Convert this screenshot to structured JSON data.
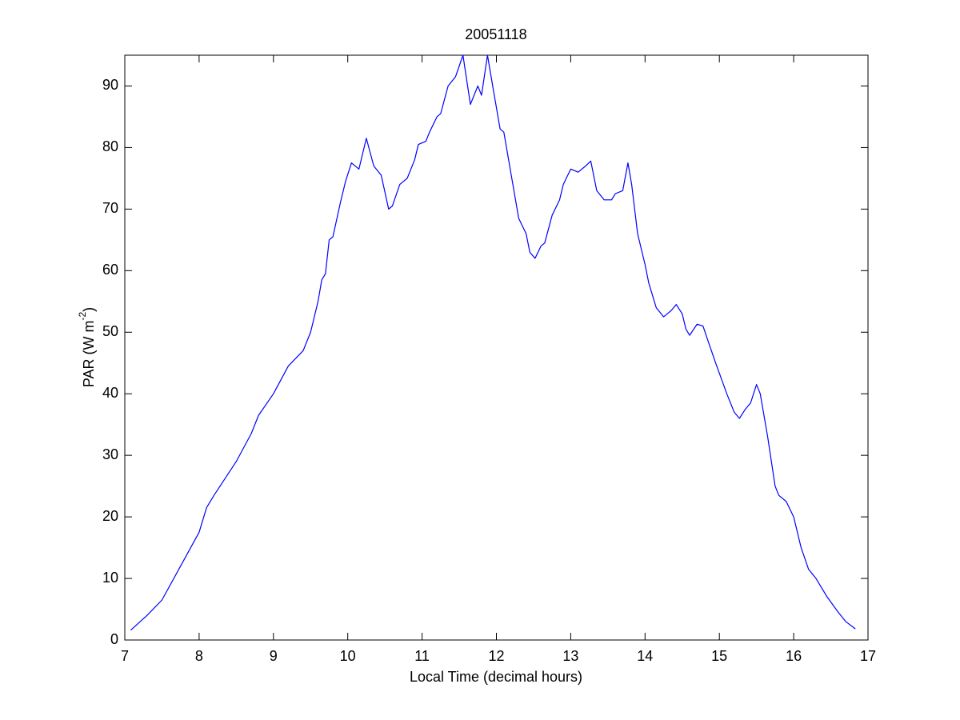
{
  "chart_data": {
    "type": "line",
    "title": "20051118",
    "xlabel": "Local Time (decimal hours)",
    "ylabel": [
      "PAR (W m",
      "-2",
      ")"
    ],
    "color": "#0000ff",
    "xlim": [
      7,
      17
    ],
    "xticks": [
      7,
      8,
      9,
      10,
      11,
      12,
      13,
      14,
      15,
      16,
      17
    ],
    "ylim": [
      0,
      95
    ],
    "yticks": [
      0,
      10,
      20,
      30,
      40,
      50,
      60,
      70,
      80,
      90
    ],
    "grid": false,
    "x": [
      7.08,
      7.3,
      7.5,
      7.75,
      8.0,
      8.1,
      8.2,
      8.5,
      8.7,
      8.8,
      9.0,
      9.2,
      9.4,
      9.5,
      9.6,
      9.65,
      9.7,
      9.75,
      9.8,
      9.9,
      9.97,
      10.05,
      10.15,
      10.25,
      10.35,
      10.45,
      10.55,
      10.6,
      10.7,
      10.8,
      10.9,
      10.95,
      11.05,
      11.1,
      11.2,
      11.25,
      11.35,
      11.45,
      11.55,
      11.65,
      11.75,
      11.8,
      11.88,
      11.95,
      12.05,
      12.1,
      12.2,
      12.3,
      12.4,
      12.45,
      12.52,
      12.6,
      12.65,
      12.75,
      12.85,
      12.9,
      13.0,
      13.1,
      13.2,
      13.27,
      13.35,
      13.45,
      13.55,
      13.6,
      13.7,
      13.77,
      13.82,
      13.9,
      14.0,
      14.05,
      14.15,
      14.25,
      14.35,
      14.42,
      14.5,
      14.55,
      14.6,
      14.7,
      14.78,
      14.85,
      14.95,
      15.1,
      15.2,
      15.27,
      15.35,
      15.42,
      15.5,
      15.55,
      15.65,
      15.75,
      15.8,
      15.9,
      16.0,
      16.1,
      16.2,
      16.3,
      16.45,
      16.6,
      16.7,
      16.83
    ],
    "values": [
      1.6,
      4,
      6.5,
      12,
      17.5,
      21.5,
      23.5,
      29,
      33.5,
      36.5,
      40,
      44.5,
      47,
      50,
      55,
      58.5,
      59.5,
      65,
      65.5,
      71,
      74.5,
      77.5,
      76.5,
      81.5,
      77,
      75.5,
      70,
      70.5,
      74,
      75,
      78,
      80.5,
      81,
      82.5,
      85,
      85.5,
      90,
      91.5,
      95,
      87,
      90,
      88.5,
      95,
      90,
      83,
      82.5,
      75.5,
      68.5,
      66,
      63,
      62,
      64,
      64.5,
      69,
      71.5,
      74,
      76.5,
      76,
      77,
      77.8,
      73,
      71.5,
      71.5,
      72.5,
      73,
      77.5,
      74,
      66,
      61,
      58,
      54,
      52.5,
      53.5,
      54.5,
      53,
      50.5,
      49.5,
      51.3,
      51,
      48.5,
      45,
      40,
      37,
      36,
      37.5,
      38.5,
      41.5,
      40,
      33,
      25,
      23.5,
      22.5,
      20,
      15,
      11.5,
      10,
      7,
      4.5,
      3,
      1.8
    ]
  }
}
